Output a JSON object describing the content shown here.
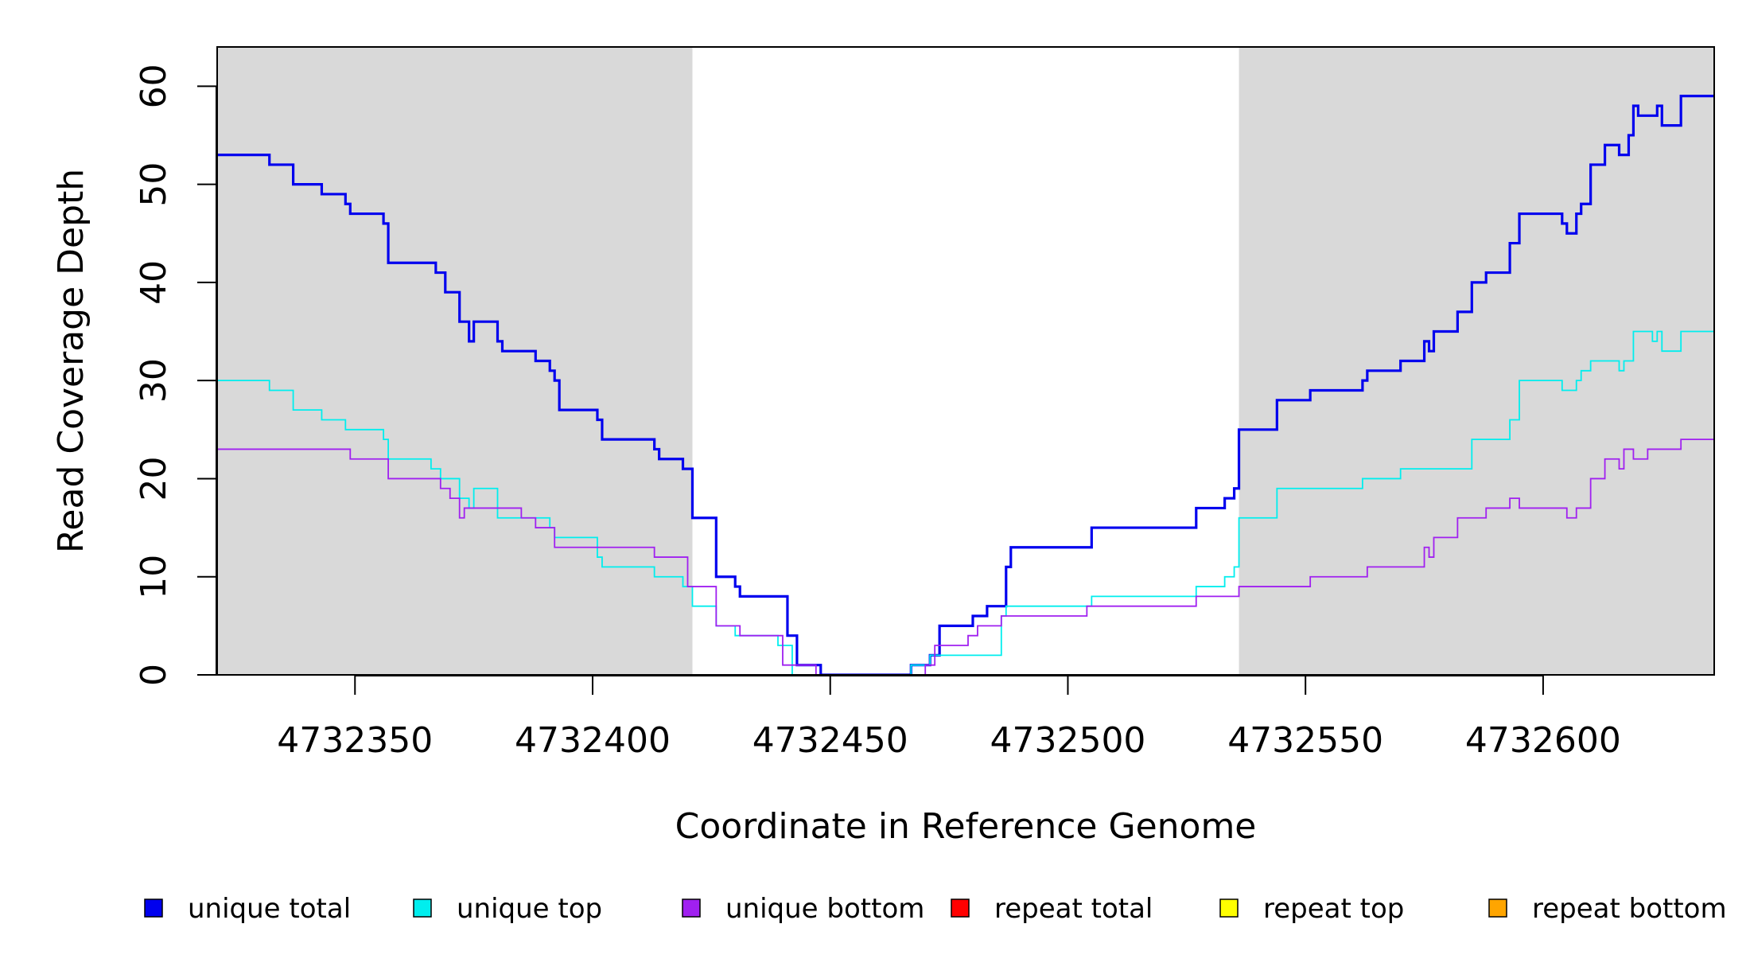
{
  "chart_data": {
    "type": "line",
    "line_shape": "step",
    "xlabel": "Coordinate in Reference Genome",
    "ylabel": "Read Coverage Depth",
    "xlim": [
      4732321,
      4732636
    ],
    "ylim": [
      0,
      64
    ],
    "x_ticks": [
      4732350,
      4732400,
      4732450,
      4732500,
      4732550,
      4732600
    ],
    "y_ticks": [
      0,
      10,
      20,
      30,
      40,
      50,
      60
    ],
    "grid": false,
    "legend_position": "bottom",
    "shaded_regions": [
      {
        "x_start": 4732321,
        "x_end": 4732421,
        "color": "#d9d9d9"
      },
      {
        "x_start": 4732536,
        "x_end": 4732636,
        "color": "#d9d9d9"
      }
    ],
    "series": [
      {
        "name": "unique total",
        "color": "#0000ee",
        "points": [
          [
            4732321,
            53
          ],
          [
            4732332,
            52
          ],
          [
            4732337,
            50
          ],
          [
            4732343,
            49
          ],
          [
            4732348,
            48
          ],
          [
            4732349,
            47
          ],
          [
            4732356,
            46
          ],
          [
            4732357,
            42
          ],
          [
            4732367,
            41
          ],
          [
            4732369,
            39
          ],
          [
            4732372,
            36
          ],
          [
            4732374,
            34
          ],
          [
            4732375,
            36
          ],
          [
            4732380,
            34
          ],
          [
            4732381,
            33
          ],
          [
            4732388,
            32
          ],
          [
            4732391,
            31
          ],
          [
            4732392,
            30
          ],
          [
            4732393,
            27
          ],
          [
            4732401,
            26
          ],
          [
            4732402,
            24
          ],
          [
            4732413,
            23
          ],
          [
            4732414,
            22
          ],
          [
            4732419,
            21
          ],
          [
            4732421,
            16
          ],
          [
            4732426,
            10
          ],
          [
            4732430,
            9
          ],
          [
            4732431,
            8
          ],
          [
            4732441,
            4
          ],
          [
            4732443,
            1
          ],
          [
            4732448,
            0
          ],
          [
            4732467,
            1
          ],
          [
            4732471,
            2
          ],
          [
            4732473,
            5
          ],
          [
            4732480,
            6
          ],
          [
            4732483,
            7
          ],
          [
            4732487,
            11
          ],
          [
            4732488,
            13
          ],
          [
            4732505,
            15
          ],
          [
            4732527,
            17
          ],
          [
            4732533,
            18
          ],
          [
            4732535,
            19
          ],
          [
            4732536,
            25
          ],
          [
            4732544,
            28
          ],
          [
            4732551,
            29
          ],
          [
            4732562,
            30
          ],
          [
            4732563,
            31
          ],
          [
            4732570,
            32
          ],
          [
            4732575,
            34
          ],
          [
            4732576,
            33
          ],
          [
            4732577,
            35
          ],
          [
            4732582,
            37
          ],
          [
            4732585,
            40
          ],
          [
            4732588,
            41
          ],
          [
            4732593,
            44
          ],
          [
            4732595,
            47
          ],
          [
            4732604,
            46
          ],
          [
            4732605,
            45
          ],
          [
            4732607,
            47
          ],
          [
            4732608,
            48
          ],
          [
            4732610,
            52
          ],
          [
            4732613,
            54
          ],
          [
            4732616,
            53
          ],
          [
            4732618,
            55
          ],
          [
            4732619,
            58
          ],
          [
            4732620,
            57
          ],
          [
            4732624,
            58
          ],
          [
            4732625,
            56
          ],
          [
            4732629,
            59
          ],
          [
            4732636,
            59
          ]
        ]
      },
      {
        "name": "unique top",
        "color": "#00eeee",
        "points": [
          [
            4732321,
            30
          ],
          [
            4732332,
            29
          ],
          [
            4732337,
            27
          ],
          [
            4732343,
            26
          ],
          [
            4732348,
            25
          ],
          [
            4732356,
            24
          ],
          [
            4732357,
            22
          ],
          [
            4732366,
            21
          ],
          [
            4732368,
            20
          ],
          [
            4732372,
            18
          ],
          [
            4732374,
            17
          ],
          [
            4732375,
            19
          ],
          [
            4732380,
            16
          ],
          [
            4732391,
            15
          ],
          [
            4732392,
            14
          ],
          [
            4732401,
            12
          ],
          [
            4732402,
            11
          ],
          [
            4732413,
            10
          ],
          [
            4732419,
            9
          ],
          [
            4732421,
            7
          ],
          [
            4732426,
            5
          ],
          [
            4732430,
            4
          ],
          [
            4732439,
            3
          ],
          [
            4732442,
            0
          ],
          [
            4732467,
            1
          ],
          [
            4732471,
            2
          ],
          [
            4732486,
            6
          ],
          [
            4732487,
            7
          ],
          [
            4732505,
            8
          ],
          [
            4732527,
            9
          ],
          [
            4732533,
            10
          ],
          [
            4732535,
            11
          ],
          [
            4732536,
            16
          ],
          [
            4732544,
            19
          ],
          [
            4732562,
            20
          ],
          [
            4732570,
            21
          ],
          [
            4732585,
            24
          ],
          [
            4732593,
            26
          ],
          [
            4732595,
            30
          ],
          [
            4732604,
            29
          ],
          [
            4732607,
            30
          ],
          [
            4732608,
            31
          ],
          [
            4732610,
            32
          ],
          [
            4732616,
            31
          ],
          [
            4732617,
            32
          ],
          [
            4732619,
            35
          ],
          [
            4732623,
            34
          ],
          [
            4732624,
            35
          ],
          [
            4732625,
            33
          ],
          [
            4732629,
            35
          ],
          [
            4732636,
            35
          ]
        ]
      },
      {
        "name": "unique bottom",
        "color": "#a020f0",
        "points": [
          [
            4732321,
            23
          ],
          [
            4732349,
            22
          ],
          [
            4732357,
            20
          ],
          [
            4732368,
            19
          ],
          [
            4732370,
            18
          ],
          [
            4732372,
            16
          ],
          [
            4732373,
            17
          ],
          [
            4732385,
            16
          ],
          [
            4732388,
            15
          ],
          [
            4732392,
            13
          ],
          [
            4732413,
            12
          ],
          [
            4732420,
            9
          ],
          [
            4732426,
            5
          ],
          [
            4732431,
            4
          ],
          [
            4732440,
            1
          ],
          [
            4732447,
            0
          ],
          [
            4732470,
            1
          ],
          [
            4732472,
            3
          ],
          [
            4732479,
            4
          ],
          [
            4732481,
            5
          ],
          [
            4732486,
            6
          ],
          [
            4732504,
            7
          ],
          [
            4732527,
            8
          ],
          [
            4732536,
            9
          ],
          [
            4732551,
            10
          ],
          [
            4732563,
            11
          ],
          [
            4732575,
            13
          ],
          [
            4732576,
            12
          ],
          [
            4732577,
            14
          ],
          [
            4732582,
            16
          ],
          [
            4732588,
            17
          ],
          [
            4732593,
            18
          ],
          [
            4732595,
            17
          ],
          [
            4732605,
            16
          ],
          [
            4732607,
            17
          ],
          [
            4732610,
            20
          ],
          [
            4732613,
            22
          ],
          [
            4732616,
            21
          ],
          [
            4732617,
            23
          ],
          [
            4732619,
            22
          ],
          [
            4732622,
            23
          ],
          [
            4732629,
            24
          ],
          [
            4732636,
            24
          ]
        ]
      },
      {
        "name": "repeat total",
        "color": "#ff0000",
        "points": [
          [
            4732321,
            0
          ],
          [
            4732636,
            0
          ]
        ]
      },
      {
        "name": "repeat top",
        "color": "#ffff00",
        "points": [
          [
            4732321,
            0
          ],
          [
            4732636,
            0
          ]
        ]
      },
      {
        "name": "repeat bottom",
        "color": "#ffa500",
        "points": [
          [
            4732321,
            0
          ],
          [
            4732636,
            0
          ]
        ]
      }
    ]
  }
}
